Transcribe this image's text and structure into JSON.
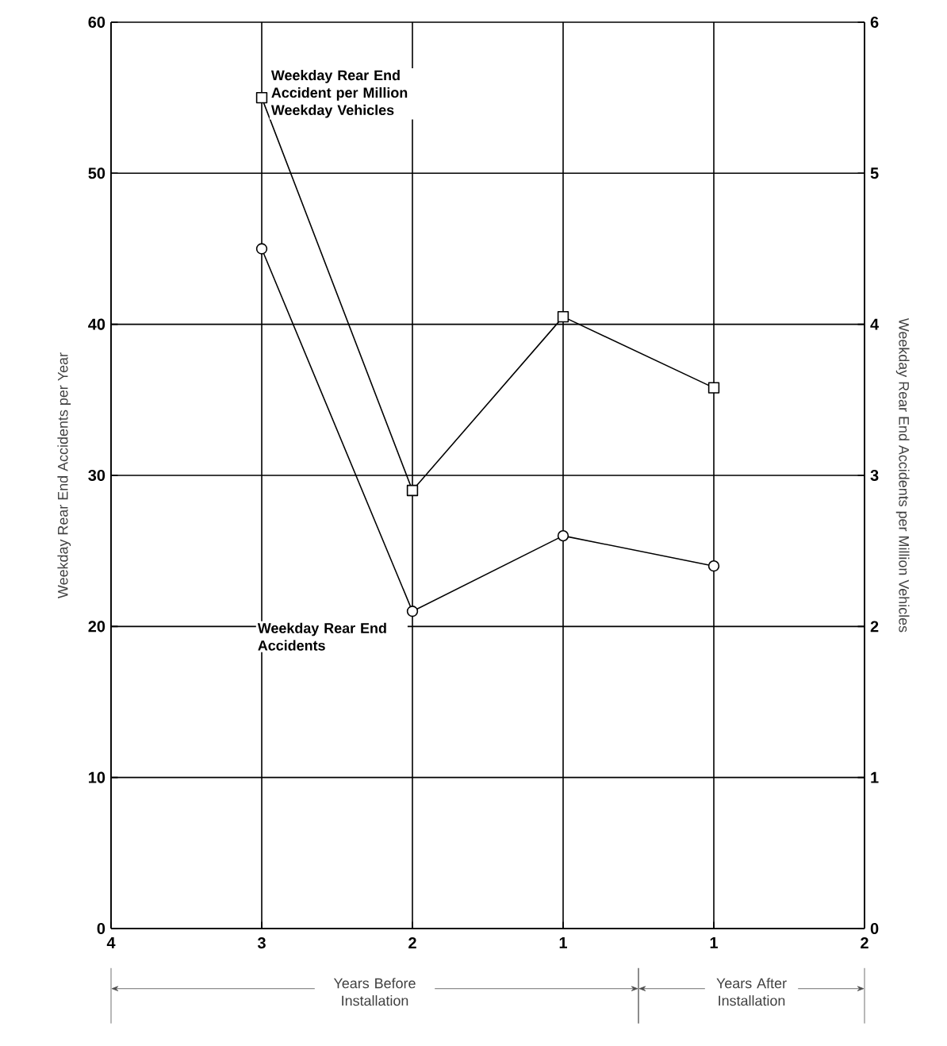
{
  "chart_data": {
    "type": "line",
    "categories": [
      "4",
      "3",
      "2",
      "1",
      "1",
      "2"
    ],
    "series": [
      {
        "name": "Weekday Rear End Accidents",
        "color": "#000000",
        "marker": "circle",
        "values": [
          null,
          45,
          21,
          26,
          24,
          null
        ]
      },
      {
        "name": "Weekday Rear End Accident per Million Weekday Vehicles",
        "color": "#000000",
        "marker": "square",
        "axis": "y2",
        "values": [
          null,
          5.5,
          2.9,
          4.05,
          3.58,
          null
        ]
      }
    ],
    "ylabel": "Weekday Rear End Accidents per Year",
    "y2label": "Weekday Rear End Accidents per Million Vehicles",
    "ylim": [
      0,
      60
    ],
    "yticks": [
      0,
      10,
      20,
      30,
      40,
      50,
      60
    ],
    "y2lim": [
      0,
      6
    ],
    "y2ticks": [
      0,
      1,
      2,
      3,
      4,
      5,
      6
    ],
    "grid": true,
    "line_style": "solid",
    "annotations": [
      "Years Before Installation",
      "Years After Installation"
    ]
  }
}
